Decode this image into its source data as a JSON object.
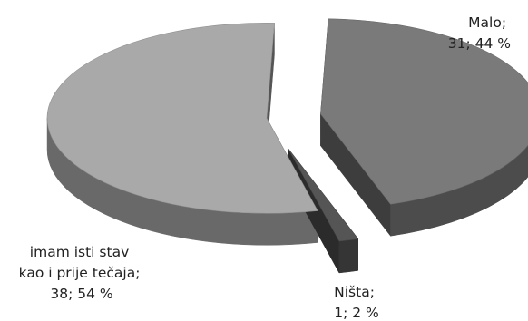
{
  "chart_data": {
    "type": "pie",
    "style": "3d-exploded",
    "title": "",
    "slices": [
      {
        "label_lines": [
          "Malo;",
          "31; 44 %"
        ],
        "value": 31,
        "percent": 44,
        "color": "#7a7a7a"
      },
      {
        "label_lines": [
          "Ništa;",
          "1; 2 %"
        ],
        "value": 1,
        "percent": 2,
        "color": "#555555"
      },
      {
        "label_lines": [
          "imam isti stav",
          "kao i prije tečaja;",
          "38; 54 %"
        ],
        "value": 38,
        "percent": 54,
        "color": "#a9a9a9"
      }
    ]
  }
}
